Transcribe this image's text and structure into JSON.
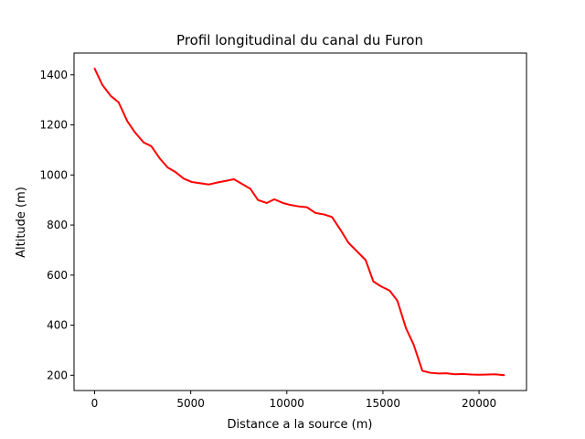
{
  "chart_data": {
    "type": "line",
    "title": "Profil longitudinal du canal du Furon",
    "xlabel": "Distance a la source (m)",
    "ylabel": "Altitude (m)",
    "xlim": [
      -1070,
      22470
    ],
    "ylim": [
      139,
      1487
    ],
    "xticks": [
      0,
      5000,
      10000,
      15000,
      20000
    ],
    "yticks": [
      200,
      400,
      600,
      800,
      1000,
      1200,
      1400
    ],
    "grid": false,
    "series": [
      {
        "color": "#ff0000",
        "x": [
          0,
          400,
          850,
          1250,
          1700,
          2100,
          2550,
          2950,
          3400,
          3800,
          4200,
          4650,
          5050,
          5500,
          5950,
          6400,
          6800,
          7250,
          7650,
          8100,
          8500,
          8950,
          9350,
          9800,
          10200,
          10650,
          11050,
          11500,
          11950,
          12350,
          12800,
          13200,
          13650,
          14100,
          14500,
          14900,
          15350,
          15750,
          16200,
          16600,
          17050,
          17450,
          17900,
          18300,
          18750,
          19150,
          19600,
          20000,
          20450,
          20850,
          21300
        ],
        "y": [
          1425,
          1360,
          1315,
          1290,
          1215,
          1170,
          1130,
          1115,
          1065,
          1030,
          1012,
          985,
          972,
          967,
          962,
          970,
          976,
          983,
          965,
          945,
          900,
          888,
          903,
          888,
          880,
          874,
          871,
          848,
          842,
          832,
          780,
          730,
          695,
          660,
          575,
          555,
          538,
          498,
          388,
          322,
          218,
          210,
          207,
          208,
          204,
          205,
          203,
          202,
          203,
          204,
          200
        ]
      }
    ]
  }
}
